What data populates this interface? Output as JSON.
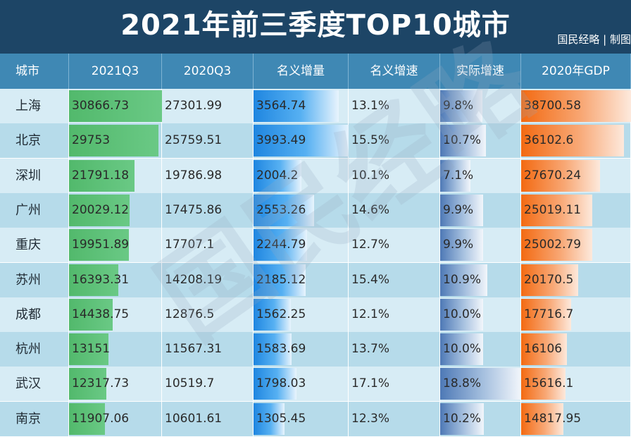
{
  "header": {
    "title": "2021年前三季度TOP10城市",
    "credit": "国民经略 | 制图"
  },
  "watermark": "国民经略",
  "colors": {
    "title_bg": "#1d4566",
    "header_bg": "#3f88b4",
    "green_bar": "#52b96c",
    "blue_bar": "#1f86e0",
    "navy_bar": "#4e79b6",
    "orange_bar": "#f36a12"
  },
  "chart_data": {
    "type": "table",
    "title": "2021年前三季度TOP10城市",
    "columns": [
      "城市",
      "2021Q3",
      "2020Q3",
      "名义增量",
      "名义增速",
      "实际增速",
      "2020年GDP"
    ],
    "rows": [
      [
        "上海",
        "30866.73",
        "27301.99",
        "3564.74",
        "13.1%",
        "9.8%",
        "38700.58"
      ],
      [
        "北京",
        "29753",
        "25759.51",
        "3993.49",
        "15.5%",
        "10.7%",
        "36102.6"
      ],
      [
        "深圳",
        "21791.18",
        "19786.98",
        "2004.2",
        "10.1%",
        "7.1%",
        "27670.24"
      ],
      [
        "广州",
        "20029.12",
        "17475.86",
        "2553.26",
        "14.6%",
        "9.9%",
        "25019.11"
      ],
      [
        "重庆",
        "19951.89",
        "17707.1",
        "2244.79",
        "12.7%",
        "9.9%",
        "25002.79"
      ],
      [
        "苏州",
        "16393.31",
        "14208.19",
        "2185.12",
        "15.4%",
        "10.9%",
        "20170.5"
      ],
      [
        "成都",
        "14438.75",
        "12876.5",
        "1562.25",
        "12.1%",
        "10.0%",
        "17716.7"
      ],
      [
        "杭州",
        "13151",
        "11567.31",
        "1583.69",
        "13.7%",
        "10.0%",
        "16106"
      ],
      [
        "武汉",
        "12317.73",
        "10519.7",
        "1798.03",
        "17.1%",
        "18.8%",
        "15616.1"
      ],
      [
        "南京",
        "11907.06",
        "10601.61",
        "1305.45",
        "12.3%",
        "10.2%",
        "14817.95"
      ]
    ],
    "bar_columns": {
      "2021Q3": [
        30866.73,
        29753,
        21791.18,
        20029.12,
        19951.89,
        16393.31,
        14438.75,
        13151,
        12317.73,
        11907.06
      ],
      "名义增量": [
        3564.74,
        3993.49,
        2004.2,
        2553.26,
        2244.79,
        2185.12,
        1562.25,
        1583.69,
        1798.03,
        1305.45
      ],
      "实际增速": [
        9.8,
        10.7,
        7.1,
        9.9,
        9.9,
        10.9,
        10.0,
        10.0,
        18.8,
        10.2
      ],
      "2020年GDP": [
        38700.58,
        36102.6,
        27670.24,
        25019.11,
        25002.79,
        20170.5,
        17716.7,
        16106,
        15616.1,
        14817.95
      ]
    }
  }
}
